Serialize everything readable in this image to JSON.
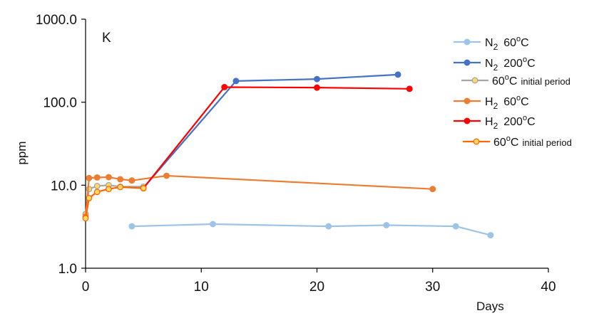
{
  "chart_data": {
    "type": "line",
    "panel_label": "K",
    "xlabel": "Days",
    "ylabel": "ppm",
    "xlim": [
      0,
      40
    ],
    "ylim": [
      1,
      1000
    ],
    "yscale": "log",
    "x_ticks": [
      0,
      10,
      20,
      30,
      40
    ],
    "y_ticks": [
      1,
      10,
      100,
      1000
    ],
    "x_tick_labels": [
      "0",
      "10",
      "20",
      "30",
      "40"
    ],
    "y_tick_labels": [
      "1.0",
      "10.0",
      "100.0",
      "1000.0"
    ],
    "grid": false,
    "legend_position": "right",
    "series": [
      {
        "id": "n2-60",
        "legend_parts": [
          "N",
          "2",
          "60",
          "o",
          "C"
        ],
        "color": "#9dc3e6",
        "marker_fill": "#9dc3e6",
        "marker_stroke": "#9dc3e6",
        "x": [
          4,
          11,
          21,
          26,
          32,
          35
        ],
        "y": [
          3.2,
          3.4,
          3.2,
          3.3,
          3.2,
          2.5
        ]
      },
      {
        "id": "n2-200",
        "legend_parts": [
          "N",
          "2",
          "200",
          "o",
          "C"
        ],
        "color": "#4472c4",
        "marker_fill": "#4472c4",
        "marker_stroke": "#4472c4",
        "x": [
          5,
          13,
          20,
          27
        ],
        "y": [
          9.3,
          180,
          190,
          215
        ]
      },
      {
        "id": "n2-60-initial",
        "legend_parts": [
          "60",
          "o",
          "C",
          "initial period"
        ],
        "color": "#a5a5a5",
        "marker_fill": "#ffd966",
        "marker_stroke": "#a5a5a5",
        "x": [
          0,
          0.3,
          1,
          2,
          3,
          5
        ],
        "y": [
          4.5,
          9.0,
          9.8,
          10.0,
          9.6,
          9.6
        ]
      },
      {
        "id": "h2-60",
        "legend_parts": [
          "H",
          "2",
          "60",
          "o",
          "C"
        ],
        "color": "#ed7d31",
        "marker_fill": "#ed7d31",
        "marker_stroke": "#ed7d31",
        "x": [
          0,
          0.3,
          1,
          2,
          3,
          4,
          7,
          30
        ],
        "y": [
          4.2,
          12.2,
          12.4,
          12.5,
          11.8,
          11.4,
          13.0,
          9.0
        ]
      },
      {
        "id": "h2-200",
        "legend_parts": [
          "H",
          "2",
          "200",
          "o",
          "C"
        ],
        "color": "#ff0000",
        "marker_fill": "#ff0000",
        "marker_stroke": "#ff0000",
        "x": [
          5,
          12,
          20,
          28
        ],
        "y": [
          9.2,
          152,
          150,
          145
        ]
      },
      {
        "id": "h2-60-initial",
        "legend_parts": [
          "60",
          "o",
          "C",
          "initial period"
        ],
        "color": "#ff6600",
        "marker_fill": "#ffd966",
        "marker_stroke": "#ff6600",
        "x": [
          0,
          0.3,
          1,
          2,
          3,
          5
        ],
        "y": [
          4.0,
          7.0,
          8.3,
          9.0,
          9.5,
          9.2
        ]
      }
    ]
  }
}
